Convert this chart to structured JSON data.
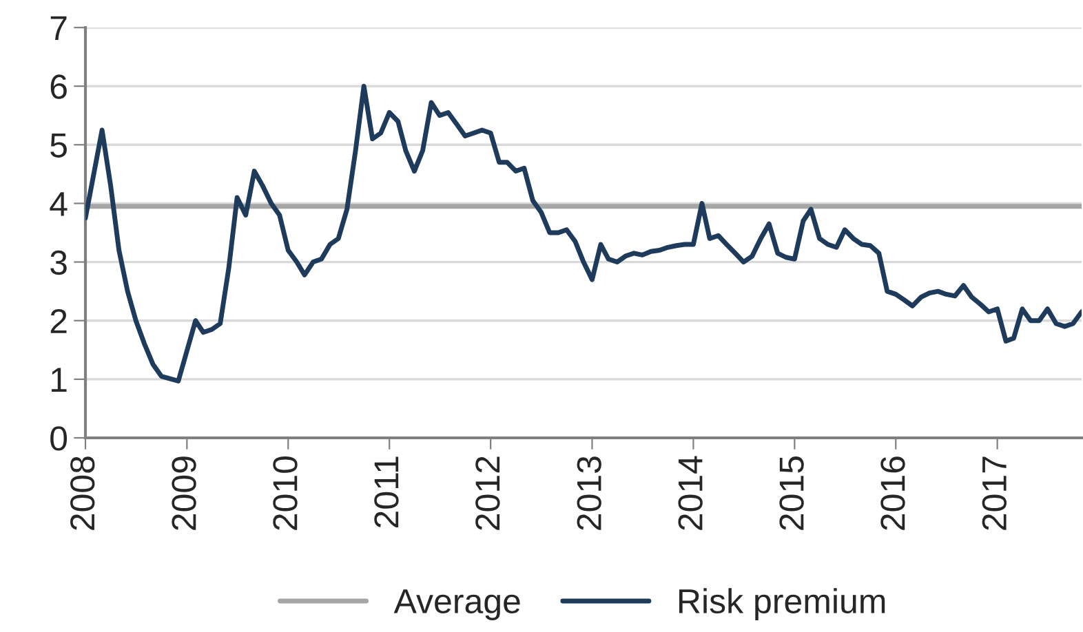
{
  "chart_data": {
    "type": "line",
    "x": [
      "2008-01",
      "2008-03",
      "2008-04",
      "2008-05",
      "2008-06",
      "2008-07",
      "2008-08",
      "2008-09",
      "2008-10",
      "2008-12",
      "2009-02",
      "2009-03",
      "2009-04",
      "2009-05",
      "2009-06",
      "2009-07",
      "2009-08",
      "2009-09",
      "2009-10",
      "2009-11",
      "2009-12",
      "2010-01",
      "2010-02",
      "2010-03",
      "2010-04",
      "2010-05",
      "2010-06",
      "2010-07",
      "2010-08",
      "2010-09",
      "2010-10",
      "2010-11",
      "2010-12",
      "2011-01",
      "2011-02",
      "2011-03",
      "2011-04",
      "2011-05",
      "2011-06",
      "2011-07",
      "2011-08",
      "2011-09",
      "2011-10",
      "2011-11",
      "2011-12",
      "2012-01",
      "2012-02",
      "2012-03",
      "2012-04",
      "2012-05",
      "2012-06",
      "2012-07",
      "2012-08",
      "2012-09",
      "2012-10",
      "2012-11",
      "2012-12",
      "2013-01",
      "2013-02",
      "2013-03",
      "2013-04",
      "2013-05",
      "2013-06",
      "2013-07",
      "2013-08",
      "2013-09",
      "2013-10",
      "2013-11",
      "2013-12",
      "2014-01",
      "2014-02",
      "2014-03",
      "2014-04",
      "2014-05",
      "2014-06",
      "2014-07",
      "2014-08",
      "2014-09",
      "2014-10",
      "2014-11",
      "2014-12",
      "2015-01",
      "2015-02",
      "2015-03",
      "2015-04",
      "2015-05",
      "2015-06",
      "2015-07",
      "2015-08",
      "2015-09",
      "2015-10",
      "2015-11",
      "2015-12",
      "2016-01",
      "2016-02",
      "2016-03",
      "2016-04",
      "2016-05",
      "2016-06",
      "2016-07",
      "2016-08",
      "2016-09",
      "2016-10",
      "2016-11",
      "2016-12",
      "2017-01",
      "2017-02",
      "2017-03",
      "2017-04",
      "2017-05",
      "2017-06",
      "2017-07",
      "2017-08",
      "2017-09",
      "2017-10",
      "2017-11"
    ],
    "series": [
      {
        "name": "Risk premium",
        "color": "#1f3b5c",
        "values": [
          3.75,
          5.25,
          4.3,
          3.2,
          2.5,
          2.0,
          1.6,
          1.25,
          1.05,
          0.97,
          2.0,
          1.8,
          1.85,
          1.95,
          2.9,
          4.1,
          3.8,
          4.55,
          4.3,
          4.0,
          3.8,
          3.2,
          3.0,
          2.78,
          3.0,
          3.05,
          3.3,
          3.4,
          3.9,
          4.9,
          6.0,
          5.1,
          5.2,
          5.55,
          5.4,
          4.9,
          4.55,
          4.9,
          5.72,
          5.5,
          5.55,
          5.35,
          5.15,
          5.2,
          5.25,
          5.2,
          4.7,
          4.7,
          4.55,
          4.6,
          4.05,
          3.85,
          3.5,
          3.5,
          3.55,
          3.35,
          3.0,
          2.7,
          3.3,
          3.05,
          3.0,
          3.1,
          3.15,
          3.12,
          3.18,
          3.2,
          3.25,
          3.28,
          3.3,
          3.3,
          4.0,
          3.4,
          3.45,
          3.3,
          3.15,
          3.0,
          3.1,
          3.4,
          3.65,
          3.15,
          3.08,
          3.05,
          3.7,
          3.9,
          3.4,
          3.3,
          3.25,
          3.55,
          3.4,
          3.3,
          3.28,
          3.15,
          2.5,
          2.45,
          2.35,
          2.25,
          2.4,
          2.47,
          2.5,
          2.45,
          2.42,
          2.6,
          2.4,
          2.28,
          2.15,
          2.2,
          1.65,
          1.7,
          2.2,
          2.0,
          2.0,
          2.2,
          1.95,
          1.9,
          1.95,
          2.15
        ]
      }
    ],
    "ref_lines": [
      {
        "axis": "y",
        "value": 3.95,
        "label": "Average",
        "color": "#a6a6a6"
      }
    ],
    "xlim": [
      "2008-01",
      "2017-11"
    ],
    "xticks": [
      {
        "value": "2008-01",
        "label": "2008"
      },
      {
        "value": "2009-01",
        "label": "2009"
      },
      {
        "value": "2010-01",
        "label": "2010"
      },
      {
        "value": "2011-01",
        "label": "2011"
      },
      {
        "value": "2012-01",
        "label": "2012"
      },
      {
        "value": "2013-01",
        "label": "2013"
      },
      {
        "value": "2014-01",
        "label": "2014"
      },
      {
        "value": "2015-01",
        "label": "2015"
      },
      {
        "value": "2016-01",
        "label": "2016"
      },
      {
        "value": "2017-01",
        "label": "2017"
      }
    ],
    "ylim": [
      0,
      7
    ],
    "yticks": [
      0,
      1,
      2,
      3,
      4,
      5,
      6,
      7
    ],
    "grid": "y",
    "legend": "bottom",
    "marker": "none",
    "line_style": "solid"
  }
}
